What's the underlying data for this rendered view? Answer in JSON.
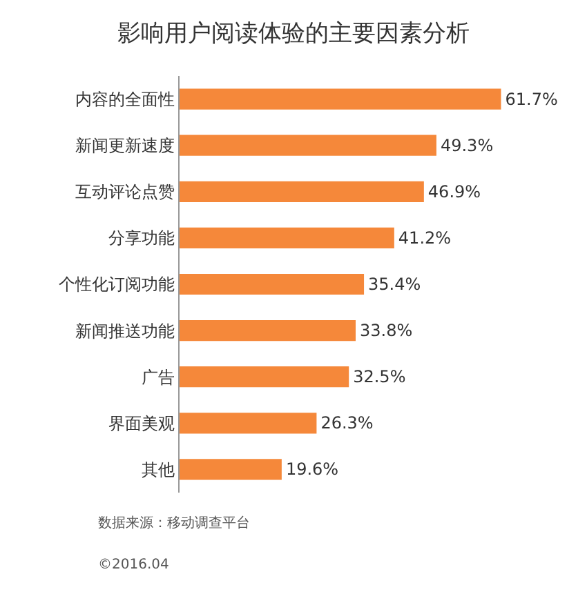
{
  "chart_data": {
    "type": "bar",
    "orientation": "horizontal",
    "title": "影响用户阅读体验的主要因素分析",
    "categories": [
      "内容的全面性",
      "新闻更新速度",
      "互动评论点赞",
      "分享功能",
      "个性化订阅功能",
      "新闻推送功能",
      "广告",
      "界面美观",
      "其他"
    ],
    "values": [
      61.7,
      49.3,
      46.9,
      41.2,
      35.4,
      33.8,
      32.5,
      26.3,
      19.6
    ],
    "value_labels": [
      "61.7%",
      "49.3%",
      "46.9%",
      "41.2%",
      "35.4%",
      "33.8%",
      "32.5%",
      "26.3%",
      "19.6%"
    ],
    "color": "#f5883a",
    "annotations": [
      "数据来源：移动调查平台",
      "©2016.04"
    ]
  }
}
